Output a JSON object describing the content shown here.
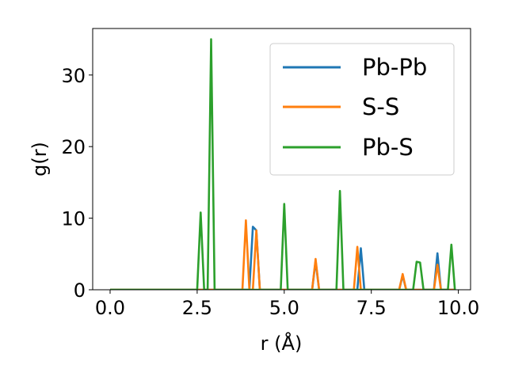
{
  "chart_data": {
    "type": "line",
    "xlabel": "r (Å)",
    "ylabel": "g(r)",
    "xlim": [
      -0.5,
      10.35
    ],
    "ylim": [
      0,
      36.5
    ],
    "xticks": [
      0.0,
      2.5,
      5.0,
      7.5,
      10.0
    ],
    "xtick_labels": [
      "0.0",
      "2.5",
      "5.0",
      "7.5",
      "10.0"
    ],
    "yticks": [
      0,
      10,
      20,
      30
    ],
    "ytick_labels": [
      "0",
      "10",
      "20",
      "30"
    ],
    "legend_position": "upper right",
    "grid": false,
    "series": [
      {
        "name": "Pb-Pb",
        "color": "#1f77b4",
        "points": [
          [
            0.0,
            0
          ],
          [
            3.9,
            0
          ],
          [
            4.0,
            0
          ],
          [
            4.1,
            8.8
          ],
          [
            4.2,
            8.3
          ],
          [
            4.3,
            0
          ],
          [
            5.8,
            0
          ],
          [
            5.9,
            4.0
          ],
          [
            6.0,
            0
          ],
          [
            7.1,
            0
          ],
          [
            7.2,
            5.8
          ],
          [
            7.3,
            0
          ],
          [
            8.3,
            0
          ],
          [
            8.4,
            2.0
          ],
          [
            8.5,
            0
          ],
          [
            9.3,
            0
          ],
          [
            9.4,
            5.1
          ],
          [
            9.5,
            0
          ],
          [
            9.9,
            0
          ]
        ]
      },
      {
        "name": "S-S",
        "color": "#ff7f0e",
        "points": [
          [
            0.0,
            0
          ],
          [
            3.8,
            0
          ],
          [
            3.9,
            9.7
          ],
          [
            4.0,
            0
          ],
          [
            4.1,
            0
          ],
          [
            4.2,
            8.3
          ],
          [
            4.3,
            0
          ],
          [
            5.8,
            0
          ],
          [
            5.9,
            4.3
          ],
          [
            6.0,
            0
          ],
          [
            7.0,
            0
          ],
          [
            7.1,
            6.0
          ],
          [
            7.2,
            0
          ],
          [
            8.3,
            0
          ],
          [
            8.4,
            2.2
          ],
          [
            8.5,
            0
          ],
          [
            9.3,
            0
          ],
          [
            9.4,
            3.5
          ],
          [
            9.5,
            0
          ],
          [
            9.9,
            0
          ]
        ]
      },
      {
        "name": "Pb-S",
        "color": "#2ca02c",
        "points": [
          [
            0.0,
            0
          ],
          [
            2.5,
            0
          ],
          [
            2.6,
            10.8
          ],
          [
            2.7,
            0
          ],
          [
            2.8,
            0
          ],
          [
            2.9,
            35.0
          ],
          [
            3.0,
            0
          ],
          [
            4.9,
            0
          ],
          [
            5.0,
            12.0
          ],
          [
            5.1,
            0
          ],
          [
            6.5,
            0
          ],
          [
            6.6,
            13.8
          ],
          [
            6.7,
            0
          ],
          [
            8.7,
            0
          ],
          [
            8.8,
            3.9
          ],
          [
            8.9,
            3.8
          ],
          [
            9.0,
            0
          ],
          [
            9.7,
            0
          ],
          [
            9.8,
            6.3
          ],
          [
            9.9,
            0
          ]
        ]
      }
    ]
  }
}
